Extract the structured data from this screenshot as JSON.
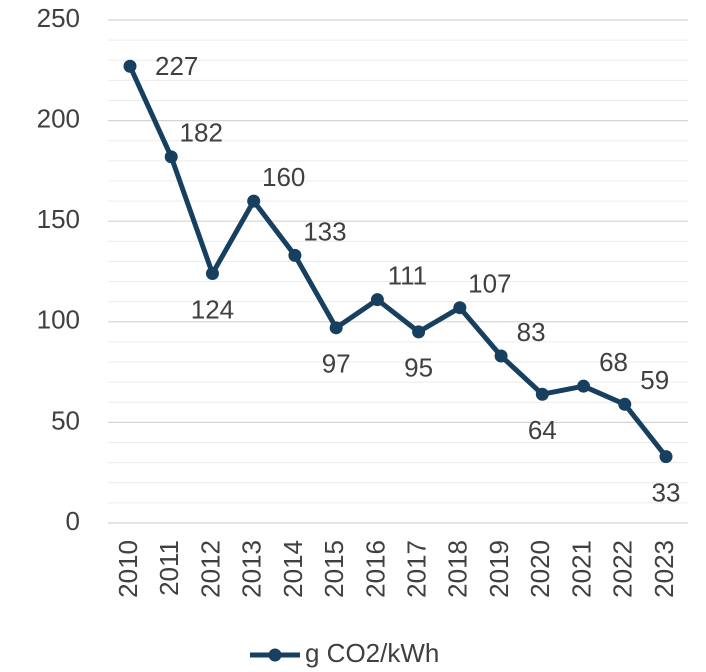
{
  "chart_data": {
    "type": "line",
    "categories": [
      "2010",
      "2011",
      "2012",
      "2013",
      "2014",
      "2015",
      "2016",
      "2017",
      "2018",
      "2019",
      "2020",
      "2021",
      "2022",
      "2023"
    ],
    "series": [
      {
        "name": "g CO2/kWh",
        "color": "#173f5f",
        "values": [
          227,
          182,
          124,
          160,
          133,
          97,
          111,
          95,
          107,
          83,
          64,
          68,
          59,
          33
        ]
      }
    ],
    "ylim": [
      0,
      250
    ],
    "yticks": [
      0,
      50,
      100,
      150,
      200,
      250
    ],
    "yminorticks": [
      10,
      20,
      30,
      40,
      60,
      70,
      80,
      90,
      110,
      120,
      130,
      140,
      160,
      170,
      180,
      190,
      210,
      220,
      230,
      240
    ],
    "grid": true,
    "legend": "bottom"
  }
}
